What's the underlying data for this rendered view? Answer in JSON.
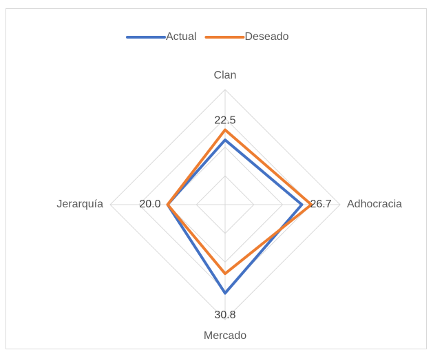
{
  "chart_data": {
    "type": "radar",
    "categories": [
      "Clan",
      "Adhocracia",
      "Mercado",
      "Jerarquía"
    ],
    "series": [
      {
        "name": "Actual",
        "color": "#4472c4",
        "values": [
          22.5,
          26.7,
          30.8,
          20.0
        ],
        "value_labels": [
          "22.5",
          "26.7",
          "30.8",
          "20.0"
        ]
      },
      {
        "name": "Deseado",
        "color": "#ed7d31",
        "values": [
          26,
          30,
          24,
          20
        ]
      }
    ],
    "rlim": [
      0,
      40
    ],
    "rticks": [
      10,
      20,
      30,
      40
    ],
    "grid": true,
    "legend": "top"
  }
}
